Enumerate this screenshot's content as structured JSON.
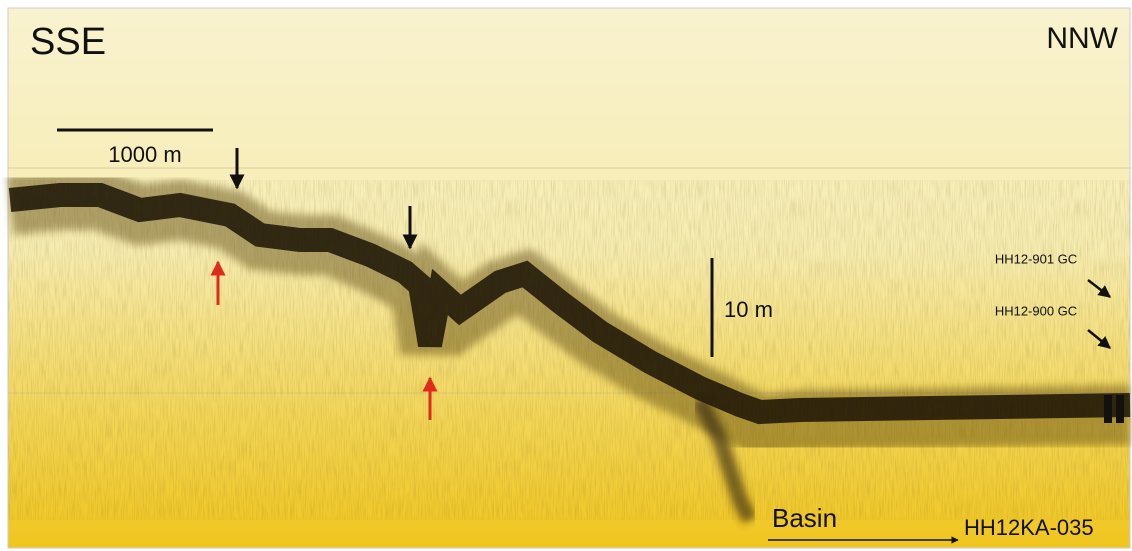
{
  "labels": {
    "left_direction": "SSE",
    "right_direction": "NNW",
    "horizontal_scale": "1000 m",
    "vertical_scale": "10 m",
    "core_1": "HH12-901 GC",
    "core_2": "HH12-900 GC",
    "basin": "Basin",
    "profile_id": "HH12KA-035"
  }
}
